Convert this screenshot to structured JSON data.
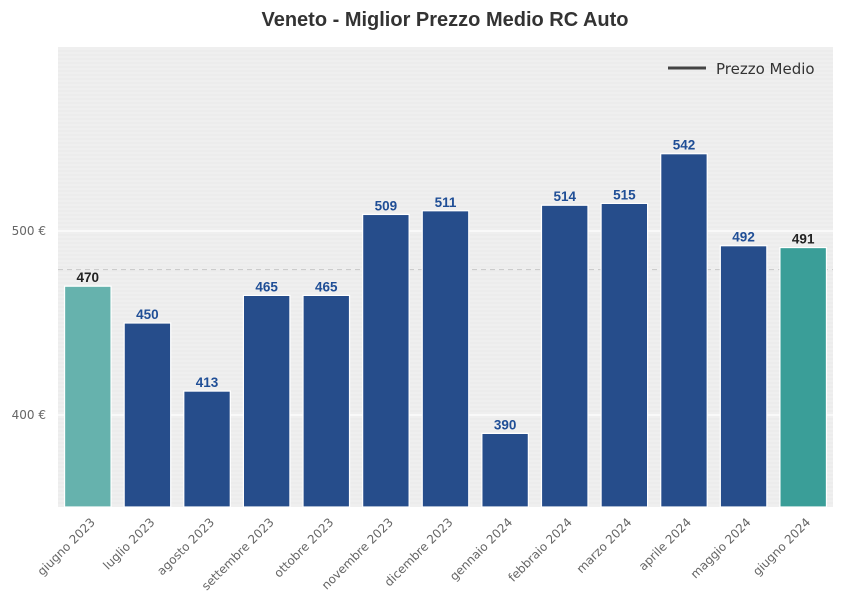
{
  "chart_data": {
    "type": "bar",
    "title": "Veneto - Miglior Prezzo Medio RC Auto",
    "xlabel": "",
    "ylabel": "",
    "categories": [
      "giugno 2023",
      "luglio 2023",
      "agosto 2023",
      "settembre 2023",
      "ottobre 2023",
      "novembre 2023",
      "dicembre 2023",
      "gennaio 2024",
      "febbraio 2024",
      "marzo 2024",
      "aprile 2024",
      "maggio 2024",
      "giugno 2024"
    ],
    "values": [
      470,
      450,
      413,
      465,
      465,
      509,
      511,
      390,
      514,
      515,
      542,
      492,
      491
    ],
    "value_labels": [
      "470",
      "450",
      "413",
      "465",
      "465",
      "509",
      "511",
      "390",
      "514",
      "515",
      "542",
      "492",
      "491"
    ],
    "ylim": [
      350,
      600
    ],
    "yticks": [
      400,
      500
    ],
    "ytick_labels": [
      "400 €",
      "500 €"
    ],
    "average_line": 479,
    "legend": {
      "label": "Prezzo Medio",
      "placement": "top-right"
    },
    "grid": true,
    "colors": {
      "default_bar": "#264d8b",
      "first_bar": "#66b2ad",
      "last_bar": "#3a9e98",
      "default_label": "#1f4e96",
      "highlight_label": "#222222",
      "average_line": "#c8c8c8",
      "plot_background": "#efefef"
    }
  }
}
